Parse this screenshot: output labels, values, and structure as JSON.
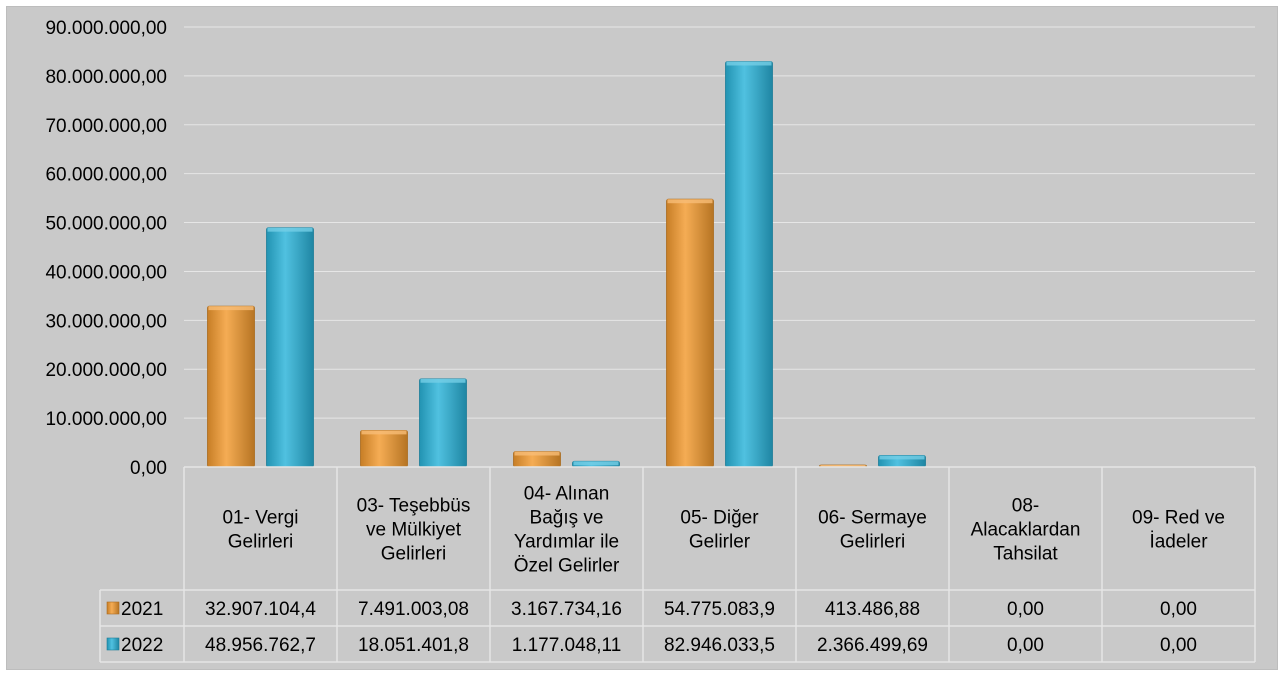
{
  "chart_data": {
    "type": "bar",
    "categories": [
      [
        "01- Vergi",
        "Gelirleri"
      ],
      [
        "03- Teşebbüs",
        "ve Mülkiyet",
        "Gelirleri"
      ],
      [
        "04- Alınan",
        "Bağış ve",
        "Yardımlar ile",
        "Özel Gelirler"
      ],
      [
        "05- Diğer",
        "Gelirler"
      ],
      [
        "06- Sermaye",
        "Gelirleri"
      ],
      [
        "08-",
        "Alacaklardan",
        "Tahsilat"
      ],
      [
        "09- Red ve",
        "İadeler"
      ]
    ],
    "series": [
      {
        "name": "2021",
        "color": "#f39a2e",
        "values": [
          32907104.4,
          7491003.08,
          3167734.16,
          54775083.9,
          413486.88,
          0,
          0
        ],
        "labels": [
          "32.907.104,4",
          "7.491.003,08",
          "3.167.734,16",
          "54.775.083,9",
          "413.486,88",
          "0,00",
          "0,00"
        ]
      },
      {
        "name": "2022",
        "color": "#29b3d9",
        "values": [
          48956762.7,
          18051401.8,
          1177048.11,
          82946033.5,
          2366499.69,
          0,
          0
        ],
        "labels": [
          "48.956.762,7",
          "18.051.401,8",
          "1.177.048,11",
          "82.946.033,5",
          "2.366.499,69",
          "0,00",
          "0,00"
        ]
      }
    ],
    "ylim": [
      0,
      90000000
    ],
    "yticks": [
      {
        "value": 0,
        "label": "0,00"
      },
      {
        "value": 10000000,
        "label": "10.000.000,00"
      },
      {
        "value": 20000000,
        "label": "20.000.000,00"
      },
      {
        "value": 30000000,
        "label": "30.000.000,00"
      },
      {
        "value": 40000000,
        "label": "40.000.000,00"
      },
      {
        "value": 50000000,
        "label": "50.000.000,00"
      },
      {
        "value": 60000000,
        "label": "60.000.000,00"
      },
      {
        "value": 70000000,
        "label": "70.000.000,00"
      },
      {
        "value": 80000000,
        "label": "80.000.000,00"
      },
      {
        "value": 90000000,
        "label": "90.000.000,00"
      }
    ],
    "grid": true,
    "legend": "data-table-left",
    "colors": {
      "background": "#c9c9c9",
      "gridline": "#e6e6e6",
      "text": "#000000"
    }
  }
}
